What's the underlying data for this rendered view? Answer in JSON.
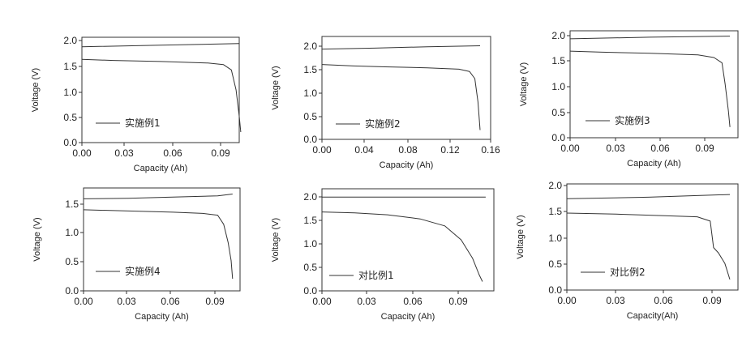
{
  "chart_data": [
    {
      "type": "line",
      "xlabel": "Capacity (Ah)",
      "ylabel": "Voltage (V)",
      "xlim": [
        0,
        0.1
      ],
      "ylim": [
        0,
        2.0
      ],
      "xticks": [
        "0.00",
        "0.03",
        "0.06",
        "0.09"
      ],
      "yticks": [
        "0.0",
        "0.5",
        "1.0",
        "1.5",
        "2.0"
      ],
      "legend": "实施例1",
      "series": [
        {
          "role": "charge",
          "x": [
            0,
            0.05,
            0.1
          ],
          "y": [
            1.82,
            1.85,
            1.88
          ]
        },
        {
          "role": "discharge",
          "x": [
            0,
            0.02,
            0.05,
            0.08,
            0.09,
            0.095,
            0.098,
            0.1,
            0.101
          ],
          "y": [
            1.58,
            1.56,
            1.54,
            1.51,
            1.48,
            1.38,
            1.0,
            0.5,
            0.2
          ]
        }
      ]
    },
    {
      "type": "line",
      "xlabel": "Capacity (Ah)",
      "ylabel": "Voltage (V)",
      "xlim": [
        0,
        0.16
      ],
      "ylim": [
        0,
        2.2
      ],
      "xticks": [
        "0.00",
        "0.04",
        "0.08",
        "0.12",
        "0.16"
      ],
      "yticks": [
        "0.0",
        "0.5",
        "1.0",
        "1.5",
        "2.0"
      ],
      "legend": "实施例2",
      "series": [
        {
          "role": "charge",
          "x": [
            0,
            0.05,
            0.1,
            0.15
          ],
          "y": [
            1.93,
            1.95,
            1.98,
            2.0
          ]
        },
        {
          "role": "discharge",
          "x": [
            0,
            0.03,
            0.06,
            0.1,
            0.13,
            0.14,
            0.145,
            0.148,
            0.15
          ],
          "y": [
            1.6,
            1.57,
            1.55,
            1.53,
            1.5,
            1.45,
            1.3,
            0.8,
            0.2
          ]
        }
      ]
    },
    {
      "type": "line",
      "xlabel": "Capacity (Ah)",
      "ylabel": "Voltage (V)",
      "xlim": [
        0,
        0.105
      ],
      "ylim": [
        0,
        2.0
      ],
      "xticks": [
        "0.00",
        "0.03",
        "0.06",
        "0.09"
      ],
      "yticks": [
        "0.0",
        "0.5",
        "1.0",
        "1.5",
        "2.0"
      ],
      "legend": "实施例3",
      "series": [
        {
          "role": "charge",
          "x": [
            0,
            0.05,
            0.1
          ],
          "y": [
            1.85,
            1.88,
            1.9
          ]
        },
        {
          "role": "discharge",
          "x": [
            0,
            0.02,
            0.05,
            0.08,
            0.09,
            0.095,
            0.097,
            0.099,
            0.1
          ],
          "y": [
            1.62,
            1.6,
            1.58,
            1.55,
            1.5,
            1.4,
            1.0,
            0.5,
            0.2
          ]
        }
      ]
    },
    {
      "type": "line",
      "xlabel": "Capacity (Ah)",
      "ylabel": "Voltage (V)",
      "xlim": [
        0,
        0.105
      ],
      "ylim": [
        0,
        1.7
      ],
      "xticks": [
        "0.00",
        "0.03",
        "0.06",
        "0.09"
      ],
      "yticks": [
        "0.0",
        "0.5",
        "1.0",
        "1.5"
      ],
      "legend": "实施例4",
      "series": [
        {
          "role": "charge",
          "x": [
            0,
            0.03,
            0.06,
            0.09,
            0.1
          ],
          "y": [
            1.52,
            1.53,
            1.55,
            1.57,
            1.6
          ]
        },
        {
          "role": "discharge",
          "x": [
            0,
            0.03,
            0.06,
            0.08,
            0.09,
            0.094,
            0.097,
            0.099,
            0.1
          ],
          "y": [
            1.34,
            1.32,
            1.3,
            1.28,
            1.25,
            1.1,
            0.8,
            0.5,
            0.2
          ]
        }
      ]
    },
    {
      "type": "line",
      "xlabel": "Capacity (Ah)",
      "ylabel": "Voltage (V)",
      "xlim": [
        0,
        0.105
      ],
      "ylim": [
        0,
        2.2
      ],
      "xticks": [
        "0.00",
        "0.03",
        "0.06",
        "0.09"
      ],
      "yticks": [
        "0.0",
        "0.5",
        "1.0",
        "1.5",
        "2.0"
      ],
      "legend": "对比例1",
      "series": [
        {
          "role": "charge",
          "x": [
            0,
            0.05,
            0.1
          ],
          "y": [
            2.02,
            2.02,
            2.02
          ]
        },
        {
          "role": "discharge",
          "x": [
            0,
            0.02,
            0.04,
            0.06,
            0.075,
            0.085,
            0.092,
            0.096,
            0.098
          ],
          "y": [
            1.7,
            1.68,
            1.64,
            1.55,
            1.4,
            1.1,
            0.7,
            0.35,
            0.2
          ]
        }
      ]
    },
    {
      "type": "line",
      "xlabel": "Capacity(Ah)",
      "ylabel": "Voltage (V)",
      "xlim": [
        0,
        0.105
      ],
      "ylim": [
        0,
        2.0
      ],
      "xticks": [
        "0.00",
        "0.03",
        "0.06",
        "0.09"
      ],
      "yticks": [
        "0.0",
        "0.5",
        "1.0",
        "1.5",
        "2.0"
      ],
      "legend": "对比例2",
      "series": [
        {
          "role": "charge",
          "x": [
            0,
            0.05,
            0.1
          ],
          "y": [
            1.72,
            1.75,
            1.8
          ]
        },
        {
          "role": "discharge",
          "x": [
            0,
            0.03,
            0.06,
            0.08,
            0.088,
            0.09,
            0.093,
            0.097,
            0.1
          ],
          "y": [
            1.45,
            1.43,
            1.4,
            1.38,
            1.3,
            0.8,
            0.7,
            0.5,
            0.2
          ]
        }
      ]
    }
  ]
}
